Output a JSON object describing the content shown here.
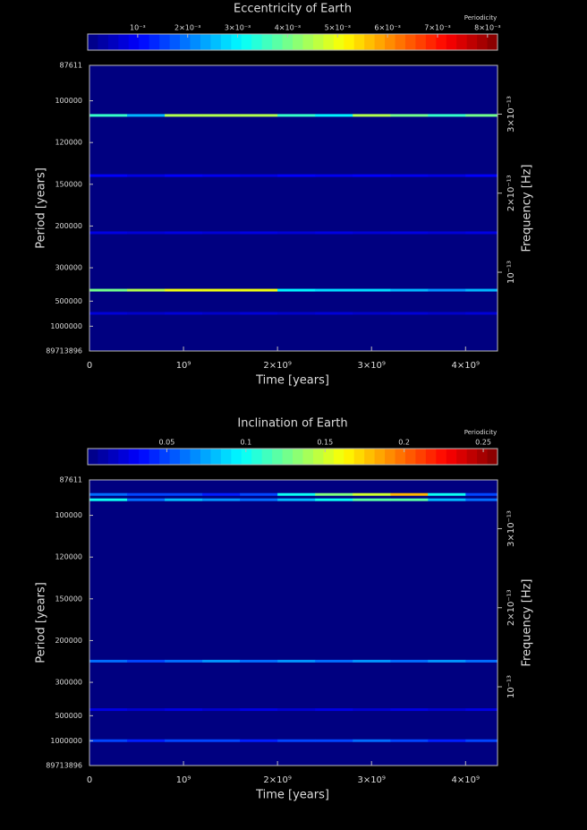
{
  "chart_data": [
    {
      "type": "heatmap",
      "title": "Eccentricity of Earth",
      "colorbar_label": "Periodicity",
      "colormap": "jet",
      "clim": [
        0,
        0.0082
      ],
      "cticks": [
        {
          "value": 0.001,
          "label": "10⁻³"
        },
        {
          "value": 0.002,
          "label": "2×10⁻³"
        },
        {
          "value": 0.003,
          "label": "3×10⁻³"
        },
        {
          "value": 0.004,
          "label": "4×10⁻³"
        },
        {
          "value": 0.005,
          "label": "5×10⁻³"
        },
        {
          "value": 0.006,
          "label": "6×10⁻³"
        },
        {
          "value": 0.007,
          "label": "7×10⁻³"
        },
        {
          "value": 0.008,
          "label": "8×10⁻³"
        }
      ],
      "xlabel": "Time [years]",
      "xlim": [
        0,
        4340000000
      ],
      "xticks": [
        0,
        {
          "value": 1000000000,
          "label": "10⁹"
        },
        {
          "value": 2000000000,
          "label": "2×10⁹"
        },
        {
          "value": 3000000000,
          "label": "3×10⁹"
        },
        {
          "value": 4000000000,
          "label": "4×10⁹"
        }
      ],
      "ylabel": "Period [years]",
      "yscale": "reciprocal",
      "ylim": [
        87611,
        89713896
      ],
      "yticks": [
        87611,
        100000,
        120000,
        150000,
        200000,
        300000,
        500000,
        1000000,
        89713896
      ],
      "y2label": "Frequency [Hz]",
      "y2lim": [
        3.617e-13,
        3.532e-16
      ],
      "y2ticks": [
        {
          "value": 3e-13,
          "label": "3×10⁻¹³"
        },
        {
          "value": 2e-13,
          "label": "2×10⁻¹³"
        },
        {
          "value": 1e-13,
          "label": "10⁻¹³"
        }
      ],
      "x": [
        200000000,
        600000000,
        1000000000,
        1400000000,
        1800000000,
        2200000000,
        2600000000,
        3000000000,
        3400000000,
        3800000000,
        4200000000
      ],
      "rows": [
        {
          "period": 106200,
          "values": [
            0.0035,
            0.0025,
            0.0045,
            0.0045,
            0.0045,
            0.0035,
            0.003,
            0.0045,
            0.004,
            0.0035,
            0.004
          ]
        },
        {
          "period": 142600,
          "values": [
            0.001,
            0.0008,
            0.001,
            0.0009,
            0.0008,
            0.001,
            0.0009,
            0.001,
            0.0009,
            0.0008,
            0.001
          ]
        },
        {
          "period": 211400,
          "values": [
            0.0008,
            0.0007,
            0.0008,
            0.0007,
            0.0008,
            0.0007,
            0.0008,
            0.0007,
            0.0008,
            0.0007,
            0.0008
          ]
        },
        {
          "period": 410000,
          "values": [
            0.004,
            0.0045,
            0.005,
            0.005,
            0.005,
            0.003,
            0.0028,
            0.0028,
            0.0025,
            0.0022,
            0.0025
          ]
        },
        {
          "period": 661000,
          "values": [
            0.0007,
            0.0006,
            0.0007,
            0.0006,
            0.0007,
            0.0006,
            0.0007,
            0.0006,
            0.0007,
            0.0006,
            0.0007
          ]
        }
      ]
    },
    {
      "type": "heatmap",
      "title": "Inclination of Earth",
      "colorbar_label": "Periodicity",
      "colormap": "jet",
      "clim": [
        0,
        0.259
      ],
      "cticks": [
        0.05,
        0.1,
        0.15,
        0.2,
        0.25
      ],
      "xlabel": "Time [years]",
      "xlim": [
        0,
        4340000000
      ],
      "xticks": [
        0,
        {
          "value": 1000000000,
          "label": "10⁹"
        },
        {
          "value": 2000000000,
          "label": "2×10⁹"
        },
        {
          "value": 3000000000,
          "label": "3×10⁹"
        },
        {
          "value": 4000000000,
          "label": "4×10⁹"
        }
      ],
      "ylabel": "Period [years]",
      "yscale": "reciprocal",
      "ylim": [
        87611,
        89713896
      ],
      "yticks": [
        87611,
        100000,
        120000,
        150000,
        200000,
        300000,
        500000,
        1000000,
        89713896
      ],
      "y2label": "Frequency [Hz]",
      "y2lim": [
        3.617e-13,
        3.532e-16
      ],
      "y2ticks": [
        {
          "value": 3e-13,
          "label": "3×10⁻¹³"
        },
        {
          "value": 2e-13,
          "label": "2×10⁻¹³"
        },
        {
          "value": 1e-13,
          "label": "10⁻¹³"
        }
      ],
      "x": [
        200000000,
        600000000,
        1000000000,
        1400000000,
        1800000000,
        2200000000,
        2600000000,
        3000000000,
        3400000000,
        3800000000,
        4200000000
      ],
      "rows": [
        {
          "period": 92300,
          "values": [
            0.06,
            0.05,
            0.05,
            0.04,
            0.05,
            0.1,
            0.13,
            0.15,
            0.18,
            0.1,
            0.05
          ]
        },
        {
          "period": 94150,
          "values": [
            0.1,
            0.06,
            0.08,
            0.07,
            0.06,
            0.08,
            0.1,
            0.12,
            0.12,
            0.08,
            0.06
          ]
        },
        {
          "period": 239300,
          "values": [
            0.06,
            0.05,
            0.06,
            0.07,
            0.06,
            0.07,
            0.06,
            0.07,
            0.06,
            0.07,
            0.06
          ]
        },
        {
          "period": 446000,
          "values": [
            0.025,
            0.02,
            0.025,
            0.02,
            0.025,
            0.02,
            0.025,
            0.02,
            0.025,
            0.02,
            0.025
          ]
        },
        {
          "period": 996000,
          "values": [
            0.05,
            0.04,
            0.05,
            0.05,
            0.04,
            0.05,
            0.05,
            0.06,
            0.05,
            0.04,
            0.05
          ]
        }
      ]
    }
  ]
}
